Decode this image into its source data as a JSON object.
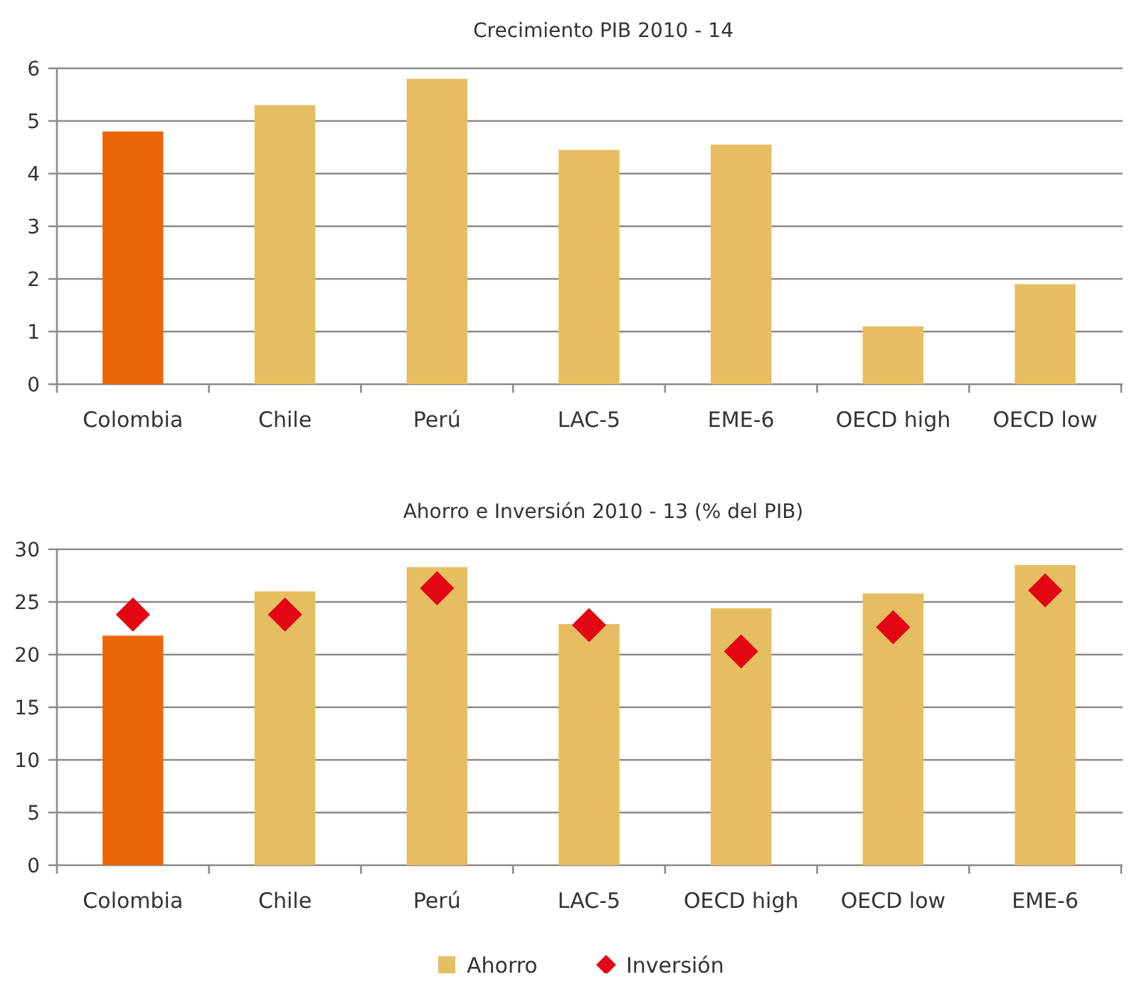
{
  "chart_data": [
    {
      "type": "bar",
      "title": "Crecimiento PIB 2010 - 14",
      "categories": [
        "Colombia",
        "Chile",
        "Perú",
        "LAC-5",
        "EME-6",
        "OECD high",
        "OECD low"
      ],
      "series": [
        {
          "values": [
            4.8,
            5.3,
            5.8,
            4.45,
            4.55,
            1.1,
            1.9
          ],
          "colors": [
            "#eb6608",
            "#e5be62",
            "#e5be62",
            "#e5be62",
            "#e5be62",
            "#e5be62",
            "#e5be62"
          ]
        }
      ],
      "ylim": [
        0,
        6
      ],
      "yticks": [
        0,
        1,
        2,
        3,
        4,
        5,
        6
      ],
      "grid": "y",
      "legend": false
    },
    {
      "type": "bar",
      "title": "Ahorro e Inversión 2010 - 13 (% del PIB)",
      "categories": [
        "Colombia",
        "Chile",
        "Perú",
        "LAC-5",
        "OECD high",
        "OECD low",
        "EME-6"
      ],
      "series": [
        {
          "name": "Ahorro",
          "color": "#e5be62",
          "values": [
            21.8,
            26,
            28.3,
            22.9,
            24.4,
            25.8,
            28.5
          ],
          "colors": [
            "#eb6608",
            "#e5be62",
            "#e5be62",
            "#e5be62",
            "#e5be62",
            "#e5be62",
            "#e5be62"
          ]
        },
        {
          "name": "Inversión",
          "type": "scatter",
          "marker": "diamond",
          "color": "#e30613",
          "values": [
            23.8,
            23.8,
            26.3,
            22.8,
            20.3,
            22.6,
            26.1
          ]
        }
      ],
      "ylim": [
        0,
        30
      ],
      "yticks": [
        0,
        5,
        10,
        15,
        20,
        25,
        30
      ],
      "grid": "y",
      "legend": "bottom"
    }
  ]
}
